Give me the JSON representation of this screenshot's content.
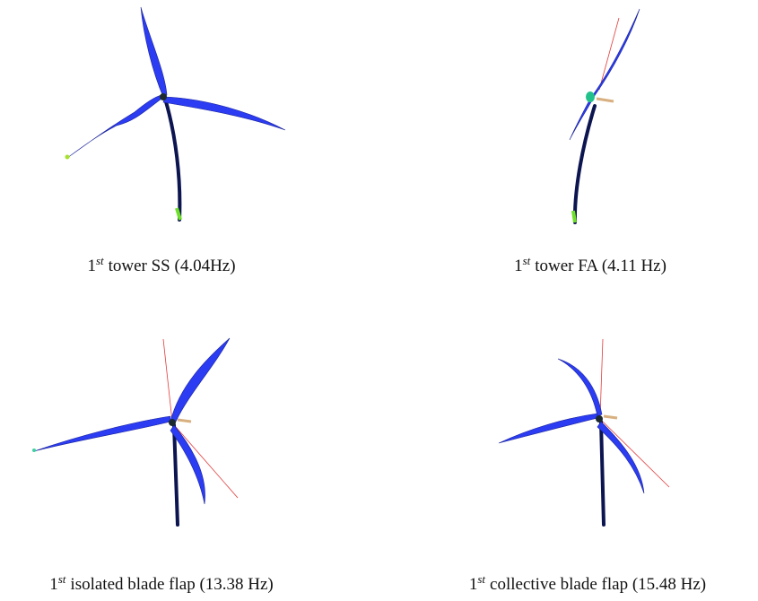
{
  "panels": [
    {
      "ordinal": "1",
      "sup": "st",
      "text": "tower SS (4.04Hz)"
    },
    {
      "ordinal": "1",
      "sup": "st",
      "text": "tower FA (4.11 Hz)"
    },
    {
      "ordinal": "1",
      "sup": "st",
      "text": "isolated blade flap (13.38 Hz)"
    },
    {
      "ordinal": "1",
      "sup": "st",
      "text": "collective blade flap (15.48 Hz)"
    }
  ]
}
